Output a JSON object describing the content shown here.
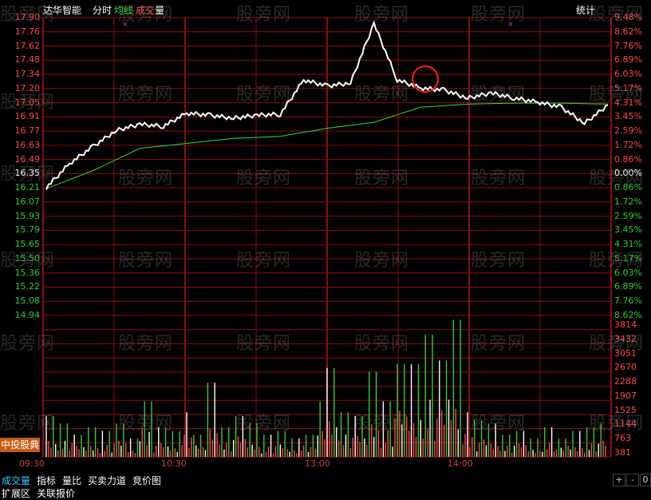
{
  "header": {
    "stock_name": "达华智能",
    "mode": "分时",
    "avg_line_label": "均线",
    "volume_label_1": "成交",
    "volume_label_2": "量",
    "stats_button": "统计"
  },
  "badge": "中投股典",
  "watermark": "股旁网",
  "price_axis_left": [
    "17.90",
    "17.76",
    "17.62",
    "17.48",
    "17.34",
    "17.20",
    "17.05",
    "16.91",
    "16.77",
    "16.63",
    "16.49",
    "16.35",
    "16.21",
    "16.07",
    "15.93",
    "15.79",
    "15.65",
    "15.50",
    "15.36",
    "15.22",
    "15.08",
    "14.94"
  ],
  "pct_axis_right": [
    "9.48%",
    "8.62%",
    "7.76%",
    "6.89%",
    "6.03%",
    "5.17%",
    "4.31%",
    "3.45%",
    "2.59%",
    "1.72%",
    "0.86%",
    "0.00%",
    "0.86%",
    "1.72%",
    "2.59%",
    "3.45%",
    "4.31%",
    "5.17%",
    "6.03%",
    "6.89%",
    "7.76%",
    "8.62%"
  ],
  "volume_axis_right": [
    "3814",
    "3432",
    "3051",
    "2670",
    "2288",
    "1907",
    "1525",
    "1144",
    "763",
    "381"
  ],
  "time_axis": [
    "09:30",
    "10:30",
    "13:00",
    "14:00"
  ],
  "bottom_tabs": [
    "成交量",
    "指标",
    "量比",
    "买卖力道",
    "竞价图"
  ],
  "bottom_tabs2": [
    "扩展区",
    "关联报价"
  ],
  "controls": [
    "+",
    "-",
    "0"
  ],
  "colors": {
    "grid": "#8b1010",
    "up": "#ff4b4b",
    "down": "#33cc33",
    "price_line": "#ffffff",
    "avg_line": "#33dd33",
    "circle": "#ff2020",
    "accent": "#c65a14"
  },
  "chart_data": {
    "type": "line",
    "title": "达华智能 分时",
    "prev_close": 16.35,
    "ylim": [
      14.94,
      17.9
    ],
    "series": [
      {
        "name": "price",
        "x_index": [
          0,
          10,
          20,
          30,
          40,
          50,
          60,
          70,
          80,
          90,
          100,
          110,
          120,
          130,
          140,
          150,
          160,
          170,
          180,
          190,
          200,
          210,
          220,
          230,
          240
        ],
        "values": [
          16.21,
          16.45,
          16.62,
          16.78,
          16.84,
          16.82,
          16.95,
          16.93,
          16.9,
          16.93,
          16.94,
          17.28,
          17.22,
          17.25,
          17.84,
          17.28,
          17.2,
          17.18,
          17.1,
          17.15,
          17.1,
          17.06,
          17.01,
          16.85,
          17.03
        ]
      },
      {
        "name": "均线",
        "x_index": [
          0,
          20,
          40,
          60,
          80,
          100,
          120,
          140,
          160,
          180,
          200,
          220,
          240
        ],
        "values": [
          16.2,
          16.38,
          16.6,
          16.65,
          16.7,
          16.72,
          16.8,
          16.86,
          17.01,
          17.04,
          17.05,
          17.05,
          17.04
        ]
      }
    ],
    "volume": {
      "ylim": [
        0,
        3814
      ],
      "values": [
        1100,
        900,
        600,
        800,
        700,
        900,
        500,
        1500,
        800,
        700,
        1200,
        600,
        2000,
        800,
        1100,
        900,
        600,
        700,
        500,
        600,
        1500,
        2400,
        1200,
        1100,
        2300,
        1500,
        2500,
        2500,
        3300,
        2600,
        3700,
        1200,
        1000,
        900,
        600,
        700,
        500,
        800,
        500,
        700,
        800,
        900
      ]
    }
  }
}
